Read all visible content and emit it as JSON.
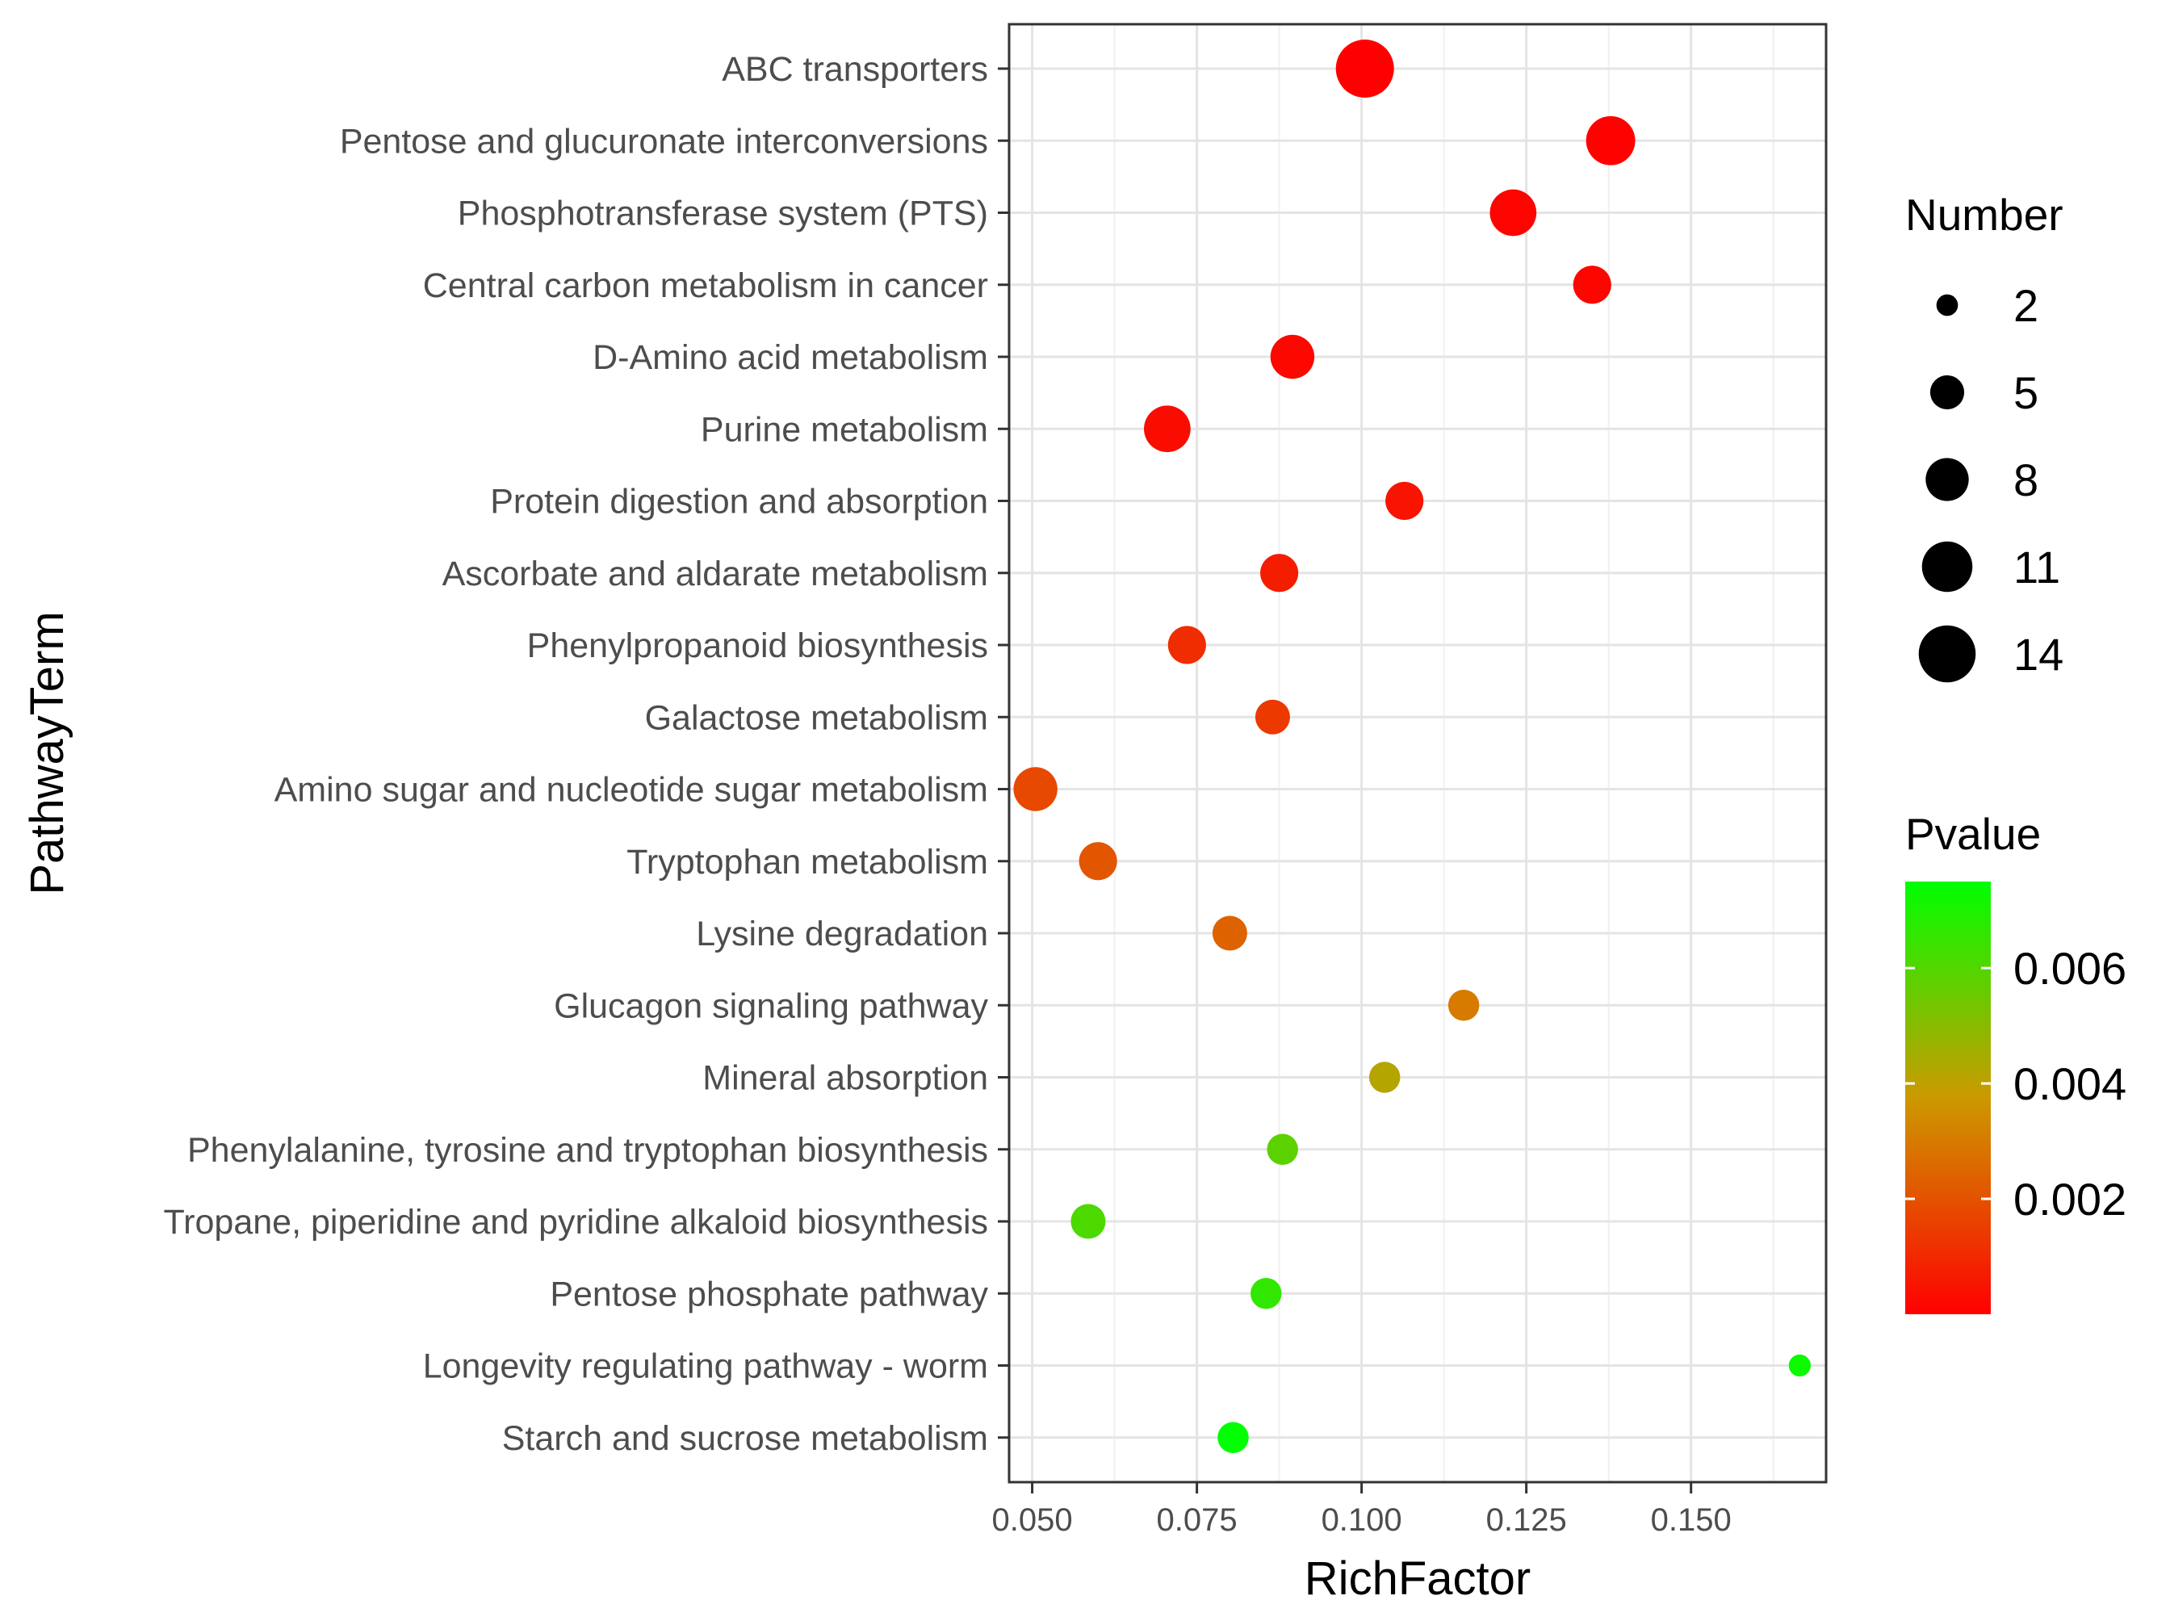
{
  "chart_data": {
    "type": "scatter",
    "xlabel": "RichFactor",
    "ylabel": "PathwayTerm",
    "xlim": [
      0.0465,
      0.1705
    ],
    "xticks": [
      "0.050",
      "0.075",
      "0.100",
      "0.125",
      "0.150"
    ],
    "xtick_values": [
      0.05,
      0.075,
      0.1,
      0.125,
      0.15
    ],
    "grid": true,
    "points": [
      {
        "term": "ABC transporters",
        "rich_factor": 0.1005,
        "number": 14,
        "pvalue": 0.0
      },
      {
        "term": "Pentose and glucuronate interconversions",
        "rich_factor": 0.1378,
        "number": 10,
        "pvalue": 5e-05
      },
      {
        "term": "Phosphotransferase system (PTS)",
        "rich_factor": 0.123,
        "number": 9,
        "pvalue": 0.0001
      },
      {
        "term": "Central carbon metabolism in cancer",
        "rich_factor": 0.135,
        "number": 6,
        "pvalue": 0.00015
      },
      {
        "term": "D-Amino acid metabolism",
        "rich_factor": 0.0895,
        "number": 8,
        "pvalue": 0.0002
      },
      {
        "term": "Purine metabolism",
        "rich_factor": 0.0705,
        "number": 9,
        "pvalue": 0.0003
      },
      {
        "term": "Protein digestion and absorption",
        "rich_factor": 0.1065,
        "number": 6,
        "pvalue": 0.0005
      },
      {
        "term": "Ascorbate and aldarate metabolism",
        "rich_factor": 0.0875,
        "number": 6,
        "pvalue": 0.0007
      },
      {
        "term": "Phenylpropanoid biosynthesis",
        "rich_factor": 0.0735,
        "number": 6,
        "pvalue": 0.0011
      },
      {
        "term": "Galactose metabolism",
        "rich_factor": 0.0865,
        "number": 5,
        "pvalue": 0.0014
      },
      {
        "term": "Amino sugar and nucleotide sugar metabolism",
        "rich_factor": 0.0505,
        "number": 8,
        "pvalue": 0.0018
      },
      {
        "term": "Tryptophan metabolism",
        "rich_factor": 0.06,
        "number": 6,
        "pvalue": 0.0021
      },
      {
        "term": "Lysine degradation",
        "rich_factor": 0.08,
        "number": 5,
        "pvalue": 0.0024
      },
      {
        "term": "Glucagon signaling pathway",
        "rich_factor": 0.1155,
        "number": 4,
        "pvalue": 0.003
      },
      {
        "term": "Mineral absorption",
        "rich_factor": 0.1035,
        "number": 4,
        "pvalue": 0.0042
      },
      {
        "term": "Phenylalanine, tyrosine and tryptophan biosynthesis",
        "rich_factor": 0.088,
        "number": 4,
        "pvalue": 0.0058
      },
      {
        "term": "Tropane, piperidine and pyridine alkaloid biosynthesis",
        "rich_factor": 0.0585,
        "number": 5,
        "pvalue": 0.0061
      },
      {
        "term": "Pentose phosphate pathway",
        "rich_factor": 0.0855,
        "number": 4,
        "pvalue": 0.0066
      },
      {
        "term": "Longevity regulating pathway - worm",
        "rich_factor": 0.1665,
        "number": 2,
        "pvalue": 0.0073
      },
      {
        "term": "Starch and sucrose metabolism",
        "rich_factor": 0.0805,
        "number": 4,
        "pvalue": 0.0075
      }
    ],
    "legend": {
      "size_title": "Number",
      "size_values": [
        2,
        5,
        8,
        11,
        14
      ],
      "color_title": "Pvalue",
      "color_labels": [
        "0.006",
        "0.004",
        "0.002"
      ],
      "color_values": [
        0.006,
        0.004,
        0.002
      ],
      "color_range": [
        0.0,
        0.0075
      ],
      "color_low": "#ff0000",
      "color_mid": "#cc9900",
      "color_high": "#00ff00",
      "placement": "right"
    }
  }
}
